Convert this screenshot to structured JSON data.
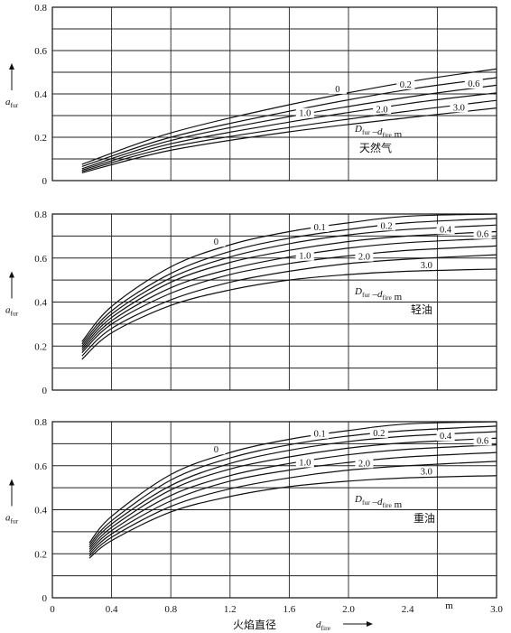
{
  "chart_data": [
    {
      "type": "line",
      "name_label": "天然气",
      "ylabel": "a",
      "ylabel_sub": "fur",
      "ylim": [
        0,
        0.8
      ],
      "yticks": [
        "0",
        "0.2",
        "0.4",
        "0.6",
        "0.8"
      ],
      "xlim": [
        0,
        3.0
      ],
      "legend": {
        "D": "D",
        "D_sub": "fur",
        "dash": "–",
        "d": "d",
        "d_sub": "fire",
        "unit": "m"
      },
      "grid": true,
      "series": [
        {
          "name": "0",
          "x": [
            0.2,
            0.8,
            1.6,
            2.4,
            3.0
          ],
          "y": [
            0.075,
            0.22,
            0.35,
            0.455,
            0.515
          ]
        },
        {
          "name": "0.2",
          "x": [
            0.2,
            0.8,
            1.6,
            2.4,
            3.0
          ],
          "y": [
            0.065,
            0.2,
            0.32,
            0.42,
            0.475
          ]
        },
        {
          "name": "0.6",
          "x": [
            0.2,
            0.8,
            1.6,
            2.4,
            3.0
          ],
          "y": [
            0.055,
            0.185,
            0.295,
            0.385,
            0.44
          ]
        },
        {
          "name": "1.0",
          "x": [
            0.2,
            0.8,
            1.6,
            2.4,
            3.0
          ],
          "y": [
            0.048,
            0.17,
            0.27,
            0.355,
            0.405
          ]
        },
        {
          "name": "2.0",
          "x": [
            0.2,
            0.8,
            1.6,
            2.4,
            3.0
          ],
          "y": [
            0.042,
            0.155,
            0.245,
            0.32,
            0.37
          ]
        },
        {
          "name": "3.0",
          "x": [
            0.2,
            0.8,
            1.6,
            2.4,
            3.0
          ],
          "y": [
            0.036,
            0.14,
            0.225,
            0.29,
            0.335
          ]
        }
      ]
    },
    {
      "type": "line",
      "name_label": "轻油",
      "ylabel": "a",
      "ylabel_sub": "fur",
      "ylim": [
        0,
        0.8
      ],
      "yticks": [
        "0",
        "0.2",
        "0.4",
        "0.6",
        "0.8"
      ],
      "xlim": [
        0,
        3.0
      ],
      "legend": {
        "D": "D",
        "D_sub": "fur",
        "dash": "–",
        "d": "d",
        "d_sub": "fire",
        "unit": "m"
      },
      "grid": true,
      "series": [
        {
          "name": "0",
          "x": [
            0.2,
            0.4,
            0.8,
            1.2,
            1.6,
            2.0,
            2.4,
            3.0
          ],
          "y": [
            0.22,
            0.38,
            0.56,
            0.66,
            0.72,
            0.76,
            0.79,
            0.8
          ]
        },
        {
          "name": "0.1",
          "x": [
            0.2,
            0.4,
            0.8,
            1.2,
            1.6,
            2.0,
            2.4,
            3.0
          ],
          "y": [
            0.21,
            0.36,
            0.53,
            0.63,
            0.69,
            0.73,
            0.76,
            0.78
          ]
        },
        {
          "name": "0.2",
          "x": [
            0.2,
            0.4,
            0.8,
            1.2,
            1.6,
            2.0,
            2.4,
            3.0
          ],
          "y": [
            0.2,
            0.345,
            0.51,
            0.605,
            0.665,
            0.705,
            0.73,
            0.75
          ]
        },
        {
          "name": "0.4",
          "x": [
            0.2,
            0.4,
            0.8,
            1.2,
            1.6,
            2.0,
            2.4,
            3.0
          ],
          "y": [
            0.19,
            0.33,
            0.49,
            0.58,
            0.635,
            0.675,
            0.7,
            0.72
          ]
        },
        {
          "name": "0.6",
          "x": [
            0.2,
            0.4,
            0.8,
            1.2,
            1.6,
            2.0,
            2.4,
            3.0
          ],
          "y": [
            0.18,
            0.315,
            0.465,
            0.55,
            0.605,
            0.645,
            0.67,
            0.69
          ]
        },
        {
          "name": "1.0",
          "x": [
            0.2,
            0.4,
            0.8,
            1.2,
            1.6,
            2.0,
            2.4,
            3.0
          ],
          "y": [
            0.17,
            0.3,
            0.44,
            0.525,
            0.575,
            0.61,
            0.635,
            0.655
          ]
        },
        {
          "name": "2.0",
          "x": [
            0.2,
            0.4,
            0.8,
            1.2,
            1.6,
            2.0,
            2.4,
            3.0
          ],
          "y": [
            0.155,
            0.28,
            0.41,
            0.49,
            0.54,
            0.575,
            0.595,
            0.615
          ]
        },
        {
          "name": "3.0",
          "x": [
            0.2,
            0.4,
            0.8,
            1.2,
            1.6,
            2.0,
            2.4,
            3.0
          ],
          "y": [
            0.14,
            0.26,
            0.385,
            0.455,
            0.5,
            0.525,
            0.54,
            0.55
          ]
        }
      ]
    },
    {
      "type": "line",
      "name_label": "重油",
      "ylabel": "a",
      "ylabel_sub": "fur",
      "ylim": [
        0,
        0.8
      ],
      "yticks": [
        "0",
        "0.2",
        "0.4",
        "0.6",
        "0.8"
      ],
      "xlim": [
        0,
        3.0
      ],
      "xticks": [
        "0",
        "0.4",
        "0.8",
        "1.2",
        "1.6",
        "2.0",
        "2.4",
        "3.0"
      ],
      "x_unit": "m",
      "xlabel": "火焰直径",
      "xsym": "d",
      "xsym_sub": "fire",
      "legend": {
        "D": "D",
        "D_sub": "fur",
        "dash": "–",
        "d": "d",
        "d_sub": "fire",
        "unit": "m"
      },
      "grid": true,
      "series": [
        {
          "name": "0",
          "x": [
            0.25,
            0.4,
            0.8,
            1.2,
            1.6,
            2.0,
            2.4,
            3.0
          ],
          "y": [
            0.25,
            0.37,
            0.56,
            0.66,
            0.72,
            0.76,
            0.79,
            0.8
          ]
        },
        {
          "name": "0.1",
          "x": [
            0.25,
            0.4,
            0.8,
            1.2,
            1.6,
            2.0,
            2.4,
            3.0
          ],
          "y": [
            0.24,
            0.35,
            0.535,
            0.635,
            0.695,
            0.735,
            0.76,
            0.78
          ]
        },
        {
          "name": "0.2",
          "x": [
            0.25,
            0.4,
            0.8,
            1.2,
            1.6,
            2.0,
            2.4,
            3.0
          ],
          "y": [
            0.23,
            0.335,
            0.51,
            0.61,
            0.67,
            0.71,
            0.735,
            0.755
          ]
        },
        {
          "name": "0.4",
          "x": [
            0.25,
            0.4,
            0.8,
            1.2,
            1.6,
            2.0,
            2.4,
            3.0
          ],
          "y": [
            0.22,
            0.32,
            0.49,
            0.585,
            0.64,
            0.68,
            0.705,
            0.725
          ]
        },
        {
          "name": "0.6",
          "x": [
            0.25,
            0.4,
            0.8,
            1.2,
            1.6,
            2.0,
            2.4,
            3.0
          ],
          "y": [
            0.21,
            0.305,
            0.465,
            0.555,
            0.61,
            0.65,
            0.675,
            0.695
          ]
        },
        {
          "name": "1.0",
          "x": [
            0.25,
            0.4,
            0.8,
            1.2,
            1.6,
            2.0,
            2.4,
            3.0
          ],
          "y": [
            0.2,
            0.29,
            0.44,
            0.53,
            0.58,
            0.615,
            0.64,
            0.66
          ]
        },
        {
          "name": "2.0",
          "x": [
            0.25,
            0.4,
            0.8,
            1.2,
            1.6,
            2.0,
            2.4,
            3.0
          ],
          "y": [
            0.19,
            0.275,
            0.415,
            0.495,
            0.545,
            0.58,
            0.6,
            0.62
          ]
        },
        {
          "name": "3.0",
          "x": [
            0.25,
            0.4,
            0.8,
            1.2,
            1.6,
            2.0,
            2.4,
            3.0
          ],
          "y": [
            0.18,
            0.26,
            0.39,
            0.46,
            0.505,
            0.53,
            0.545,
            0.555
          ]
        }
      ]
    }
  ]
}
